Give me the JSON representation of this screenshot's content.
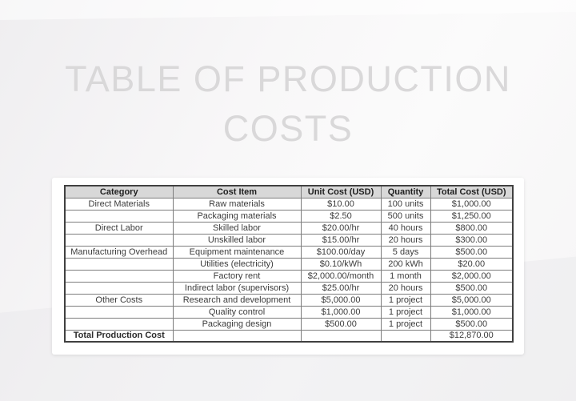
{
  "title": {
    "line1": "TABLE OF PRODUCTION",
    "line2": "COSTS"
  },
  "table": {
    "headers": [
      "Category",
      "Cost Item",
      "Unit Cost (USD)",
      "Quantity",
      "Total Cost (USD)"
    ],
    "rows": [
      [
        "Direct Materials",
        "Raw materials",
        "$10.00",
        "100 units",
        "$1,000.00"
      ],
      [
        "",
        "Packaging materials",
        "$2.50",
        "500 units",
        "$1,250.00"
      ],
      [
        "Direct Labor",
        "Skilled labor",
        "$20.00/hr",
        "40 hours",
        "$800.00"
      ],
      [
        "",
        "Unskilled labor",
        "$15.00/hr",
        "20 hours",
        "$300.00"
      ],
      [
        "Manufacturing Overhead",
        "Equipment maintenance",
        "$100.00/day",
        "5 days",
        "$500.00"
      ],
      [
        "",
        "Utilities (electricity)",
        "$0.10/kWh",
        "200 kWh",
        "$20.00"
      ],
      [
        "",
        "Factory rent",
        "$2,000.00/month",
        "1 month",
        "$2,000.00"
      ],
      [
        "",
        "Indirect labor (supervisors)",
        "$25.00/hr",
        "20 hours",
        "$500.00"
      ],
      [
        "Other Costs",
        "Research and development",
        "$5,000.00",
        "1 project",
        "$5,000.00"
      ],
      [
        "",
        "Quality control",
        "$1,000.00",
        "1 project",
        "$1,000.00"
      ],
      [
        "",
        "Packaging design",
        "$500.00",
        "1 project",
        "$500.00"
      ]
    ],
    "total_row": {
      "label": "Total Production Cost",
      "cost_item": "",
      "unit_cost": "",
      "quantity": "",
      "value": "$12,870.00"
    }
  },
  "colors": {
    "header_bg": "#d8d8d8",
    "table_border": "#404040",
    "inner_border": "#7d7d7d",
    "title_text": "#d9d8d9",
    "body_text": "#3c3c3c",
    "card_bg": "#ffffff",
    "page_bg": "#f6f5f6"
  }
}
